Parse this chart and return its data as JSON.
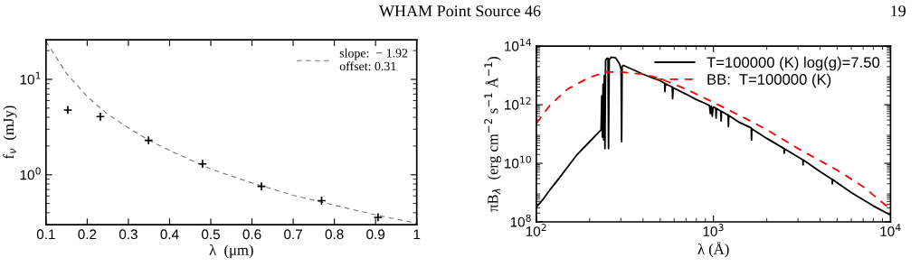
{
  "chart_data": [
    {
      "type": "scatter",
      "xlabel": "λ  (μm)",
      "ylabel": "f$_{ν}$  (mJy)",
      "log": "y",
      "legend": "top right",
      "grid": false,
      "xlim": [
        0.1,
        1
      ],
      "ylim": [
        0.3,
        26
      ],
      "xticks": [
        0.1,
        0.2,
        0.3,
        0.4,
        0.5,
        0.6,
        0.7,
        0.8,
        0.9,
        1
      ],
      "yticks": [
        {
          "value": 1,
          "label": "10$^{0}$"
        },
        {
          "value": 10,
          "label": "10$^{1}$"
        }
      ],
      "series": [
        {
          "type": "scatter",
          "marker": "cross",
          "color": "#000000",
          "x": [
            0.153,
            0.232,
            0.349,
            0.48,
            0.623,
            0.769,
            0.906
          ],
          "values": [
            4.77,
            4.07,
            2.29,
            1.3,
            0.755,
            0.535,
            0.358
          ]
        },
        {
          "type": "line",
          "name": "slope:  − 1.92\noffset: 0.31",
          "line_style": "dashed",
          "marker": "none",
          "color": "#777777",
          "x": [
            0.1,
            0.15,
            0.2,
            0.25,
            0.3,
            0.35,
            0.4,
            0.5,
            0.6,
            0.7,
            0.8,
            0.9,
            1.0
          ],
          "values": [
            25,
            11.5,
            6.6,
            4.3,
            3.1,
            2.3,
            1.8,
            1.15,
            0.82,
            0.61,
            0.48,
            0.38,
            0.31
          ]
        }
      ]
    },
    {
      "type": "line",
      "xlabel": "λ (Å)",
      "ylabel": "πB$_{λ}$  (erg cm$^{−2}$ s$^{−1}$ Å$^{−1}$)",
      "log": "xy",
      "legend": "top right",
      "grid": false,
      "marker": "none",
      "xlim": [
        100,
        10000
      ],
      "ylim": [
        100000000.0,
        100000000000000.0
      ],
      "xticks": [
        {
          "value": 100,
          "label": "10$^{2}$"
        },
        {
          "value": 1000,
          "label": "10$^{3}$"
        },
        {
          "value": 10000,
          "label": "10$^{4}$"
        }
      ],
      "yticks": [
        {
          "value": 100000000.0,
          "label": "10$^{8}$"
        },
        {
          "value": 10000000000.0,
          "label": "10$^{10}$"
        },
        {
          "value": 1000000000000.0,
          "label": "10$^{12}$"
        },
        {
          "value": 100000000000000.0,
          "label": "10$^{14}$"
        }
      ],
      "series": [
        {
          "name": "T=100000 (K) log(g)=7.50",
          "color": "#000000",
          "line_style": "solid",
          "x": [
            100,
            110,
            120,
            135,
            150,
            170,
            200,
            220,
            232,
            234,
            236,
            238,
            240,
            242,
            244,
            246,
            250,
            254,
            255.5,
            258,
            265,
            280,
            295,
            301,
            303,
            305,
            310,
            350,
            400,
            450,
            500,
            530,
            532,
            535,
            585,
            588,
            592,
            700,
            800,
            900,
            950,
            960,
            970,
            985,
            995,
            1030,
            1035,
            1040,
            1100,
            1105,
            1110,
            1210,
            1215,
            1220,
            1400,
            1635,
            1640,
            1645,
            2000,
            2500,
            2510,
            2520,
            3200,
            3205,
            3210,
            4000,
            4686,
            4690,
            4700,
            6000,
            8000,
            10000
          ],
          "values": [
            320000000.0,
            630000000.0,
            1300000000.0,
            3200000000.0,
            7400000000.0,
            20000000000.0,
            55000000000.0,
            100000000000.0,
            140000000000.0,
            2000000000000.0,
            79000000000.0,
            5000000000000.0,
            63000000000.0,
            10000000000000.0,
            32000000000.0,
            32000000000000.0,
            38000000000000.0,
            38000000000000.0,
            32000000000.0,
            35000000000000.0,
            42000000000000.0,
            40000000000000.0,
            25000000000000.0,
            16000000000000.0,
            55000000000.0,
            20000000000000.0,
            22000000000000.0,
            16000000000000.0,
            11000000000000.0,
            8300000000000.0,
            6600000000000.0,
            5400000000000.0,
            2800000000000.0,
            5200000000000.0,
            4000000000000.0,
            1600000000000.0,
            3800000000000.0,
            2300000000000.0,
            1500000000000.0,
            1100000000000.0,
            930000000000.0,
            500000000000.0,
            890000000000.0,
            400000000000.0,
            830000000000.0,
            760000000000.0,
            350000000000.0,
            740000000000.0,
            600000000000.0,
            280000000000.0,
            590000000000.0,
            440000000000.0,
            180000000000.0,
            430000000000.0,
            250000000000.0,
            160000000000.0,
            62000000000.0,
            150000000000.0,
            71000000000.0,
            32000000000.0,
            22000000000.0,
            31000000000.0,
            13000000000.0,
            8900000000.0,
            13000000000.0,
            5200000000.0,
            2800000000.0,
            2000000000.0,
            2800000000.0,
            1000000000.0,
            350000000.0,
            170000000.0
          ]
        },
        {
          "name": "BB:  T=100000 (K)",
          "color": "#ff0000",
          "line_style": "dashed",
          "x": [
            100,
            120,
            150,
            200,
            250,
            300,
            400,
            500,
            700,
            1000,
            1500,
            2000,
            3000,
            5000,
            7000,
            10000
          ],
          "values": [
            230000000000.0,
            1000000000000.0,
            3400000000000.0,
            8700000000000.0,
            13000000000000.0,
            13000000000000.0,
            11000000000000.0,
            7800000000000.0,
            3400000000000.0,
            1200000000000.0,
            350000000000.0,
            140000000000.0,
            32000000000.0,
            5800000000.0,
            1600000000.0,
            270000000.0
          ]
        }
      ]
    },
    {
      "type": "other",
      "annotations": [
        "WHAM Point Source 46",
        "19"
      ]
    }
  ]
}
